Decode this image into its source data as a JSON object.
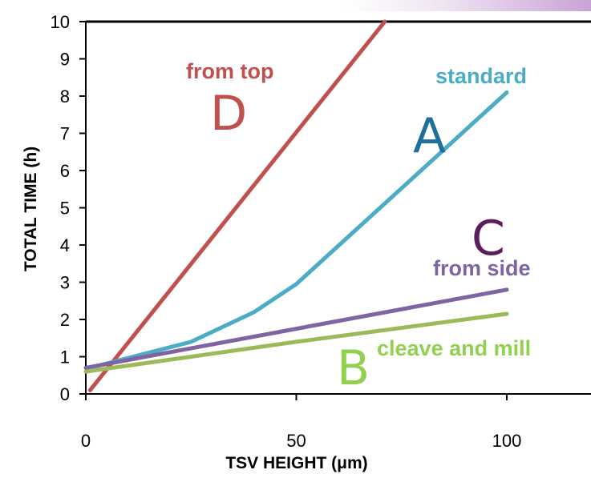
{
  "chart_data": {
    "type": "line",
    "title": "",
    "xlabel": "TSV HEIGHT (μm)",
    "ylabel": "TOTAL TIME (h)",
    "xlim": [
      0,
      120
    ],
    "ylim": [
      0,
      10
    ],
    "xticks": [
      "0",
      "50",
      "100"
    ],
    "yticks": [
      "0",
      "1",
      "2",
      "3",
      "4",
      "5",
      "6",
      "7",
      "8",
      "9",
      "10"
    ],
    "grid": false,
    "series": [
      {
        "key": "D",
        "color": "#c0504d",
        "points": [
          [
            1,
            0.1
          ],
          [
            71,
            10
          ]
        ]
      },
      {
        "key": "A",
        "color": "#4bacc6",
        "points": [
          [
            1,
            0.7
          ],
          [
            25,
            1.4
          ],
          [
            40,
            2.2
          ],
          [
            50,
            2.95
          ],
          [
            100,
            8.1
          ]
        ]
      },
      {
        "key": "C",
        "color": "#8064a2",
        "points": [
          [
            0,
            0.7
          ],
          [
            100,
            2.8
          ]
        ]
      },
      {
        "key": "B",
        "color": "#9bbb59",
        "points": [
          [
            0,
            0.6
          ],
          [
            25,
            1.0
          ],
          [
            50,
            1.4
          ],
          [
            100,
            2.15
          ]
        ]
      }
    ],
    "annotations": [
      {
        "key": "D_label",
        "text": "from top",
        "color": "#c0504d"
      },
      {
        "key": "D_letter",
        "text": "D",
        "color": "#c0504d"
      },
      {
        "key": "A_label",
        "text": "standard",
        "color": "#4bacc6"
      },
      {
        "key": "A_letter",
        "text": "A",
        "color": "#1f6f9c"
      },
      {
        "key": "C_letter",
        "text": "C",
        "color": "#5b1f5e"
      },
      {
        "key": "C_label",
        "text": "from side",
        "color": "#8064a2"
      },
      {
        "key": "B_letter",
        "text": "B",
        "color": "#92d050"
      },
      {
        "key": "B_label",
        "text": "cleave and mill",
        "color": "#92d050"
      }
    ]
  }
}
